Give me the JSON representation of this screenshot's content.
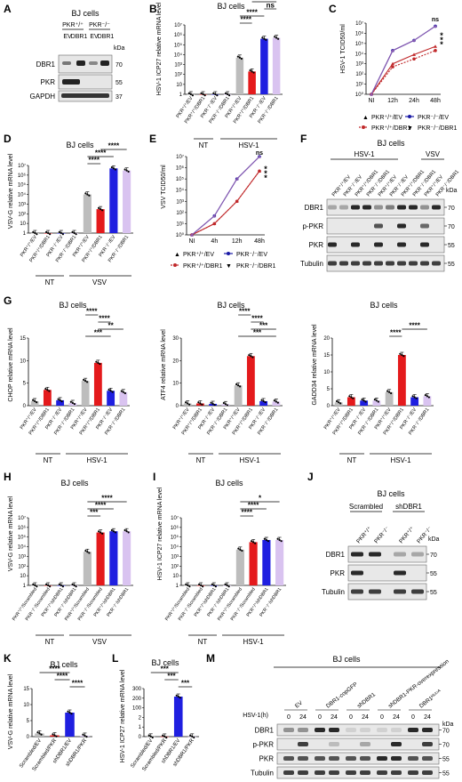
{
  "panels": {
    "A": {
      "letter": "A",
      "title": "BJ cells",
      "group_pos": "PKR⁺/⁺",
      "group_neg": "PKR⁻/⁻",
      "lanes": [
        "EV",
        "DBR1",
        "EV",
        "DBR1"
      ],
      "kda": "kDa",
      "blots": [
        {
          "name": "DBR1",
          "mw": "70"
        },
        {
          "name": "PKR",
          "mw": "55"
        },
        {
          "name": "GAPDH",
          "mw": "37"
        }
      ]
    },
    "B": {
      "letter": "B",
      "title": "BJ cells",
      "ylabel": "HSV-1 ICP27 relative mRNA level",
      "ticks": [
        "1",
        "10",
        "10²",
        "10³",
        "10⁴",
        "10⁵",
        "10⁶",
        "10⁷"
      ],
      "labels": [
        "PKR⁺/⁺/EV",
        "PKR⁺/⁺/DBR1",
        "PKR⁻/⁻/EV",
        "PKR⁻/⁻/DBR1",
        "PKR⁺/⁺/EV",
        "PKR⁺/⁺/DBR1",
        "PKR⁻/⁻/EV",
        "PKR⁻/⁻/DBR1"
      ],
      "groups": [
        "NT",
        "HSV-1"
      ],
      "sig": [
        "****",
        "****",
        "ns",
        "****"
      ]
    },
    "C": {
      "letter": "C",
      "title": "",
      "ylabel": "HSV-1 TCID50/ml",
      "ticks": [
        "10⁰",
        "10¹",
        "10²",
        "10³",
        "10⁴",
        "10⁵",
        "10⁶",
        "10⁷"
      ],
      "x": [
        "NI",
        "12h",
        "24h",
        "48h"
      ],
      "sig": [
        "ns",
        "*",
        "*",
        "*"
      ],
      "legend": [
        "PKR⁺/⁺/EV",
        "PKR⁻/⁻/EV",
        "PKR⁺/⁺/DBR1",
        "PKR⁻/⁻/DBR1"
      ]
    },
    "D": {
      "letter": "D",
      "title": "BJ cells",
      "ylabel": "VSV-G relative mRNA level",
      "ticks": [
        "1",
        "10",
        "10²",
        "10³",
        "10⁴",
        "10⁵",
        "10⁶",
        "10⁷"
      ],
      "labels": [
        "PKR⁺/⁺/EV",
        "PKR⁺/⁺/DBR1",
        "PKR⁻/⁻/EV",
        "PKR⁻/⁻/DBR1",
        "PKR⁺/⁺/EV",
        "PKR⁺/⁺/DBR1",
        "PKR⁻/⁻/EV",
        "PKR⁻/⁻/DBR1"
      ],
      "groups": [
        "NT",
        "VSV"
      ],
      "sig": [
        "****",
        "****",
        "****"
      ]
    },
    "E": {
      "letter": "E",
      "title": "",
      "ylabel": "VSV TCID50/ml",
      "ticks": [
        "10⁰",
        "10¹",
        "10²",
        "10³",
        "10⁴",
        "10⁵",
        "10⁶",
        "10⁷"
      ],
      "x": [
        "NI",
        "4h",
        "12h",
        "48h"
      ],
      "sig": [
        "ns",
        "*",
        "*",
        "*"
      ],
      "legend": [
        "PKR⁺/⁺/EV",
        "PKR⁻/⁻/EV",
        "PKR⁺/⁺/DBR1",
        "PKR⁻/⁻/DBR1"
      ]
    },
    "F": {
      "letter": "F",
      "title": "BJ cells",
      "groups": [
        "HSV-1",
        "VSV"
      ],
      "lanes": [
        "PKR⁺/⁺/EV",
        "PKR⁻/⁻/EV",
        "PKR⁺/⁺/DBR1",
        "PKR⁻/⁻/DBR1",
        "PKR⁺/⁺/EV",
        "PKR⁻/⁻/EV",
        "PKR⁺/⁺/DBR1",
        "PKR⁻/⁻/DBR1",
        "PKR⁺/⁺/EV",
        "PKR⁻/⁻/DBR1"
      ],
      "kda": "kDa",
      "blots": [
        {
          "name": "DBR1",
          "mw": "70"
        },
        {
          "name": "p-PKR",
          "mw": "70"
        },
        {
          "name": "PKR",
          "mw": "55"
        },
        {
          "name": "Tubulin",
          "mw": "55"
        }
      ]
    },
    "G": {
      "letter": "G",
      "title": "BJ cells",
      "labels": [
        "PKR⁺/⁺/EV",
        "PKR⁺/⁺/DBR1",
        "PKR⁻/⁻/EV",
        "PKR⁻/⁻/DBR1",
        "PKR⁺/⁺/EV",
        "PKR⁺/⁺/DBR1",
        "PKR⁻/⁻/EV",
        "PKR⁻/⁻/DBR1"
      ],
      "groups": [
        "NT",
        "HSV-1"
      ],
      "sub": [
        {
          "ylabel": "CHOP relative mRNA level",
          "ticks": [
            "0",
            "5",
            "10",
            "15"
          ],
          "sig": [
            "***",
            "**",
            "****",
            "****"
          ]
        },
        {
          "ylabel": "ATF4 relative mRNA level",
          "ticks": [
            "0",
            "10",
            "20",
            "30"
          ],
          "sig": [
            "***",
            "***",
            "****",
            "****"
          ]
        },
        {
          "ylabel": "GADD34 relative mRNA level",
          "ticks": [
            "0",
            "5",
            "10",
            "15",
            "20"
          ],
          "sig": [
            "****",
            "****"
          ]
        }
      ]
    },
    "H": {
      "letter": "H",
      "title": "BJ cells",
      "ylabel": "VSV-G relative mRNA level",
      "ticks": [
        "1",
        "10",
        "10²",
        "10³",
        "10⁴",
        "10⁵",
        "10⁶",
        "10⁷"
      ],
      "labels": [
        "PKR⁺/⁺/Scrambled",
        "PKR⁻/⁻/Scrambled",
        "PKR⁺/⁺/shDBR1",
        "PKR⁻/⁻/shDBR1",
        "PKR⁺/⁺/Scrambled",
        "PKR⁻/⁻/Scrambled",
        "PKR⁺/⁺/shDBR1",
        "PKR⁻/⁻/shDBR1"
      ],
      "groups": [
        "NT",
        "VSV"
      ],
      "sig": [
        "***",
        "****",
        "****"
      ]
    },
    "I": {
      "letter": "I",
      "title": "BJ cells",
      "ylabel": "HSV-1 ICP27 relative mRNA level",
      "ticks": [
        "1",
        "10",
        "10²",
        "10³",
        "10⁴",
        "10⁵",
        "10⁶",
        "10⁷"
      ],
      "labels": [
        "PKR⁺/⁺/Scrambled",
        "PKR⁻/⁻/Scrambled",
        "PKR⁺/⁺/shDBR1",
        "PKR⁻/⁻/shDBR1",
        "PKR⁺/⁺/Scrambled",
        "PKR⁻/⁻/Scrambled",
        "PKR⁺/⁺/shDBR1",
        "PKR⁻/⁻/shDBR1"
      ],
      "groups": [
        "NT",
        "HSV-1"
      ],
      "sig": [
        "****",
        "****",
        "*"
      ]
    },
    "J": {
      "letter": "J",
      "title": "BJ cells",
      "groups": [
        "Scrambled",
        "shDBR1"
      ],
      "lanes": [
        "PKR⁺/⁺",
        "PKR⁻/⁻",
        "PKR⁺/⁺",
        "PKR⁻/⁻"
      ],
      "kda": "kDa",
      "blots": [
        {
          "name": "DBR1",
          "mw": "70"
        },
        {
          "name": "PKR",
          "mw": "55"
        },
        {
          "name": "Tubulin",
          "mw": "55"
        }
      ]
    },
    "K": {
      "letter": "K",
      "title": "BJ cells",
      "ylabel": "VSV-G relative mRNA level",
      "ticks": [
        "0",
        "5",
        "10",
        "15"
      ],
      "labels": [
        "Scrambled/EV",
        "Scrambled/PKR",
        "shDBR1/EV",
        "shDBR1/PKR"
      ],
      "sig": [
        "****",
        "****",
        "****"
      ]
    },
    "L": {
      "letter": "L",
      "title": "BJ cells",
      "ylabel": "HSV-1 ICP27 relative mRNA level",
      "ticks": [
        "0",
        "1",
        "2",
        "100",
        "200",
        "300"
      ],
      "labels": [
        "Scrambled/EV",
        "Scrambled/PKR",
        "shDBR1/EV",
        "shDBR1/PKR"
      ],
      "sig": [
        "***",
        "***",
        "***"
      ]
    },
    "M": {
      "letter": "M",
      "title": "BJ cells",
      "row_label": "HSV-1(h)",
      "groups": [
        "EV",
        "DBR1-copGFP",
        "shDBR1",
        "shDBR1-PKR-overexpression",
        "DBR1ᴴ¹³⁷ᴬ"
      ],
      "times": [
        "0",
        "24"
      ],
      "kda": "kDa",
      "blots": [
        {
          "name": "DBR1",
          "mw": "70"
        },
        {
          "name": "p-PKR",
          "mw": "70"
        },
        {
          "name": "PKR",
          "mw": "55"
        },
        {
          "name": "Tubulin",
          "mw": "55"
        }
      ]
    }
  },
  "colors": {
    "grey": "#bdbdbd",
    "red": "#e41a1c",
    "blue": "#1f1fe0",
    "lav": "#d9c3f0",
    "darkred": "#c0282a",
    "navy": "#1a1aa6"
  },
  "chart_data": [
    {
      "type": "bar",
      "panel": "B",
      "log": true,
      "categories": [
        "PKR+/+/EV NT",
        "PKR+/+/DBR1 NT",
        "PKR-/-/EV NT",
        "PKR-/-/DBR1 NT",
        "PKR+/+/EV HSV-1",
        "PKR+/+/DBR1 HSV-1",
        "PKR-/-/EV HSV-1",
        "PKR-/-/DBR1 HSV-1"
      ],
      "values": [
        1,
        1,
        1,
        1,
        5000,
        200,
        400000,
        500000
      ],
      "ylim": [
        1,
        10000000
      ]
    },
    {
      "type": "line",
      "panel": "C",
      "log": true,
      "x": [
        "NI",
        "12h",
        "24h",
        "48h"
      ],
      "series": [
        {
          "values": [
            1,
            1000,
            8000,
            50000
          ]
        },
        {
          "values": [
            1,
            20000,
            200000,
            5000000
          ]
        },
        {
          "values": [
            1,
            500,
            3000,
            20000
          ]
        },
        {
          "values": [
            1,
            20000,
            200000,
            5000000
          ]
        }
      ],
      "ylim": [
        1,
        10000000
      ]
    },
    {
      "type": "bar",
      "panel": "D",
      "log": true,
      "categories": [
        "PKR+/+/EV NT",
        "PKR+/+/DBR1 NT",
        "PKR-/-/EV NT",
        "PKR-/-/DBR1 NT",
        "PKR+/+/EV VSV",
        "PKR+/+/DBR1 VSV",
        "PKR-/-/EV VSV",
        "PKR-/-/DBR1 VSV"
      ],
      "values": [
        1,
        1,
        1,
        1,
        10000,
        300,
        5000000,
        3000000
      ],
      "ylim": [
        1,
        10000000
      ]
    },
    {
      "type": "line",
      "panel": "E",
      "log": true,
      "x": [
        "NI",
        "4h",
        "12h",
        "48h"
      ],
      "series": [
        {
          "values": [
            1,
            10,
            1000,
            500000
          ]
        },
        {
          "values": [
            1,
            50,
            100000,
            10000000
          ]
        },
        {
          "values": [
            1,
            10,
            1000,
            500000
          ]
        },
        {
          "values": [
            1,
            50,
            100000,
            10000000
          ]
        }
      ],
      "ylim": [
        1,
        10000000
      ]
    },
    {
      "type": "bar",
      "panel": "G-CHOP",
      "categories": [
        "1",
        "2",
        "3",
        "4",
        "5",
        "6",
        "7",
        "8"
      ],
      "values": [
        1,
        3.5,
        1.2,
        0.6,
        5.5,
        9.5,
        3.3,
        3
      ],
      "ylim": [
        0,
        15
      ]
    },
    {
      "type": "bar",
      "panel": "G-ATF4",
      "categories": [
        "1",
        "2",
        "3",
        "4",
        "5",
        "6",
        "7",
        "8"
      ],
      "values": [
        1,
        1,
        0.8,
        0.7,
        9,
        22,
        2,
        1.8
      ],
      "ylim": [
        0,
        30
      ]
    },
    {
      "type": "bar",
      "panel": "G-GADD34",
      "categories": [
        "1",
        "2",
        "3",
        "4",
        "5",
        "6",
        "7",
        "8"
      ],
      "values": [
        1,
        2.5,
        1.5,
        1.5,
        4,
        15,
        2.5,
        2.8
      ],
      "ylim": [
        0,
        20
      ]
    },
    {
      "type": "bar",
      "panel": "H",
      "log": true,
      "categories": [
        "1",
        "2",
        "3",
        "4",
        "5",
        "6",
        "7",
        "8"
      ],
      "values": [
        1,
        1,
        1,
        1,
        3000,
        300000,
        400000,
        400000
      ],
      "ylim": [
        1,
        10000000
      ]
    },
    {
      "type": "bar",
      "panel": "I",
      "log": true,
      "categories": [
        "1",
        "2",
        "3",
        "4",
        "5",
        "6",
        "7",
        "8"
      ],
      "values": [
        1,
        1,
        1,
        1,
        5000,
        30000,
        50000,
        50000
      ],
      "ylim": [
        1,
        10000000
      ]
    },
    {
      "type": "bar",
      "panel": "K",
      "categories": [
        "Scrambled/EV",
        "Scrambled/PKR",
        "shDBR1/EV",
        "shDBR1/PKR"
      ],
      "values": [
        1,
        0.4,
        7.5,
        0.3
      ],
      "ylim": [
        0,
        15
      ]
    },
    {
      "type": "bar",
      "panel": "L",
      "categories": [
        "Scrambled/EV",
        "Scrambled/PKR",
        "shDBR1/EV",
        "shDBR1/PKR"
      ],
      "values": [
        1,
        0.5,
        250,
        0.9
      ],
      "ylim": [
        0,
        300
      ]
    }
  ]
}
